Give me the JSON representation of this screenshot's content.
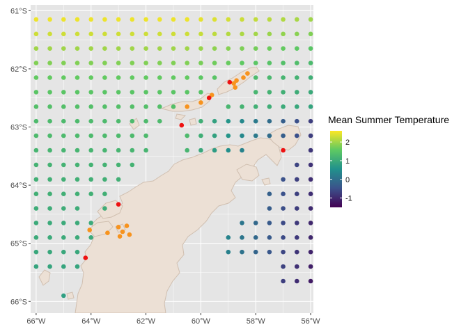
{
  "chart_data": {
    "type": "scatter",
    "title": "",
    "xlabel": "",
    "ylabel": "",
    "xlim": [
      -66.2,
      -55.9
    ],
    "ylim": [
      -66.2,
      -60.9
    ],
    "x_ticks": [
      {
        "value": -66,
        "label": "66°W"
      },
      {
        "value": -64,
        "label": "64°W"
      },
      {
        "value": -62,
        "label": "62°W"
      },
      {
        "value": -60,
        "label": "60°W"
      },
      {
        "value": -58,
        "label": "58°W"
      },
      {
        "value": -56,
        "label": "56°W"
      }
    ],
    "y_ticks": [
      {
        "value": -61,
        "label": "61°S"
      },
      {
        "value": -62,
        "label": "62°S"
      },
      {
        "value": -63,
        "label": "63°S"
      },
      {
        "value": -64,
        "label": "64°S"
      },
      {
        "value": -65,
        "label": "65°S"
      },
      {
        "value": -66,
        "label": "66°S"
      }
    ],
    "grid": true,
    "legend": {
      "title": "Mean Summer Temperature",
      "position": "right",
      "min": -1.5,
      "max": 2.6,
      "ticks": [
        {
          "value": 2,
          "label": "2"
        },
        {
          "value": 1,
          "label": "1"
        },
        {
          "value": 0,
          "label": "0"
        },
        {
          "value": -1,
          "label": "-1"
        }
      ],
      "colors": [
        "#440154",
        "#3b528b",
        "#21918c",
        "#5ec962",
        "#fde725"
      ]
    },
    "grid_lon_min": -66,
    "grid_lon_max": -56,
    "grid_lon_step": 0.5,
    "grid_lat": [
      -61.15,
      -61.4,
      -61.65,
      -61.9,
      -62.15,
      -62.4,
      -62.65,
      -62.9,
      -63.15,
      -63.4,
      -63.65,
      -63.9,
      -64.15,
      -64.4,
      -64.65,
      -64.9,
      -65.15,
      -65.4,
      -65.65,
      -65.9
    ],
    "row_temperature_base": [
      2.5,
      2.3,
      2.0,
      1.8,
      1.6,
      1.5,
      1.4,
      1.3,
      1.3,
      1.2,
      1.15,
      1.1,
      1.1,
      1.05,
      1.0,
      1.0,
      0.95,
      0.9,
      0.85,
      0.8
    ],
    "east_cooling_start": -60.5,
    "east_cooling_rate": 0.45,
    "temperature_min_clip": -1.35,
    "cells_over_land": [
      {
        "lat": -62.15,
        "lon": [
          -59,
          -58.5
        ]
      },
      {
        "lat": -62.4,
        "lon": [
          -59.5,
          -59,
          -58.5
        ]
      },
      {
        "lat": -62.65,
        "lon": [
          -60.5,
          -60,
          -59.5
        ]
      },
      {
        "lat": -62.9,
        "lon": [
          -61,
          -60.5
        ]
      },
      {
        "lat": -63.15,
        "lon": [
          -61.5,
          -61
        ]
      },
      {
        "lat": -63.4,
        "lon": [
          -61.5,
          -61,
          -58,
          -57.5,
          -57,
          -56.5
        ]
      },
      {
        "lat": -63.65,
        "lon": [
          -62,
          -61.5,
          -61,
          -60.5,
          -60,
          -59.5,
          -59,
          -58.5,
          -58,
          -57.5,
          -57
        ]
      },
      {
        "lat": -63.9,
        "lon": [
          -62.5,
          -62,
          -61.5,
          -61,
          -60.5,
          -60,
          -59.5,
          -59,
          -58.5,
          -58,
          -57.5
        ]
      },
      {
        "lat": -64.15,
        "lon": [
          -63,
          -62.5,
          -62,
          -61.5,
          -61,
          -60.5,
          -60,
          -59.5,
          -59,
          -58.5,
          -58
        ]
      },
      {
        "lat": -64.4,
        "lon": [
          -64,
          -63,
          -62.5,
          -62,
          -61.5,
          -61,
          -60.5,
          -60,
          -59.5,
          -59,
          -58.5,
          -58
        ]
      },
      {
        "lat": -64.65,
        "lon": [
          -63.5,
          -63,
          -62.5,
          -62,
          -61.5,
          -61,
          -60.5,
          -60,
          -59.5,
          -59
        ]
      },
      {
        "lat": -64.9,
        "lon": [
          -63.5,
          -63,
          -62.5,
          -62,
          -61.5,
          -61,
          -60.5,
          -60,
          -59.5
        ]
      },
      {
        "lat": -65.15,
        "lon": [
          -64,
          -63.5,
          -63,
          -62.5,
          -62,
          -61.5,
          -61,
          -60.5,
          -60,
          -59.5
        ]
      },
      {
        "lat": -65.4,
        "lon": [
          -64,
          -63.5,
          -63,
          -62.5,
          -62,
          -61.5,
          -61,
          -60.5,
          -60,
          -59.5,
          -59,
          -58.5,
          -58,
          -57.5
        ]
      },
      {
        "lat": -65.65,
        "lon": [
          -66,
          -65.5,
          -65,
          -64.5,
          -64,
          -63.5,
          -63,
          -62.5,
          -62,
          -61.5,
          -61,
          -60.5,
          -60,
          -59.5,
          -59,
          -58.5,
          -58,
          -57.5
        ]
      },
      {
        "lat": -65.9,
        "lon": [
          -66,
          -65.5,
          -64.5,
          -64,
          -63.5,
          -63,
          -62.5,
          -62,
          -61.5,
          -61,
          -60.5,
          -60,
          -59.5,
          -59,
          -58.5,
          -58,
          -57.5,
          -57,
          -56.5,
          -56
        ]
      }
    ],
    "sites_red": [
      {
        "lon": -58.95,
        "lat": -62.23
      },
      {
        "lon": -59.7,
        "lat": -62.5
      },
      {
        "lon": -60.7,
        "lat": -62.97
      },
      {
        "lon": -57.0,
        "lat": -63.4
      },
      {
        "lon": -63.0,
        "lat": -64.33
      },
      {
        "lon": -64.2,
        "lat": -65.25
      }
    ],
    "sites_orange": [
      {
        "lon": -58.3,
        "lat": -62.08
      },
      {
        "lon": -58.45,
        "lat": -62.15
      },
      {
        "lon": -58.7,
        "lat": -62.2
      },
      {
        "lon": -58.8,
        "lat": -62.25
      },
      {
        "lon": -58.75,
        "lat": -62.32
      },
      {
        "lon": -59.6,
        "lat": -62.45
      },
      {
        "lon": -60.0,
        "lat": -62.58
      },
      {
        "lon": -60.5,
        "lat": -62.65
      },
      {
        "lon": -64.05,
        "lat": -64.77
      },
      {
        "lon": -63.4,
        "lat": -64.82
      },
      {
        "lon": -63.0,
        "lat": -64.72
      },
      {
        "lon": -62.7,
        "lat": -64.7
      },
      {
        "lon": -62.85,
        "lat": -64.8
      },
      {
        "lon": -62.95,
        "lat": -64.88
      },
      {
        "lon": -62.6,
        "lat": -64.85
      }
    ],
    "site_colors": {
      "red": "#ee1111",
      "orange": "#f7931e"
    }
  },
  "colors": {
    "panel_background": "#e5e5e5",
    "grid_major": "#ffffff",
    "land_fill": "#ece0d5",
    "land_stroke": "#d0bfb0"
  }
}
